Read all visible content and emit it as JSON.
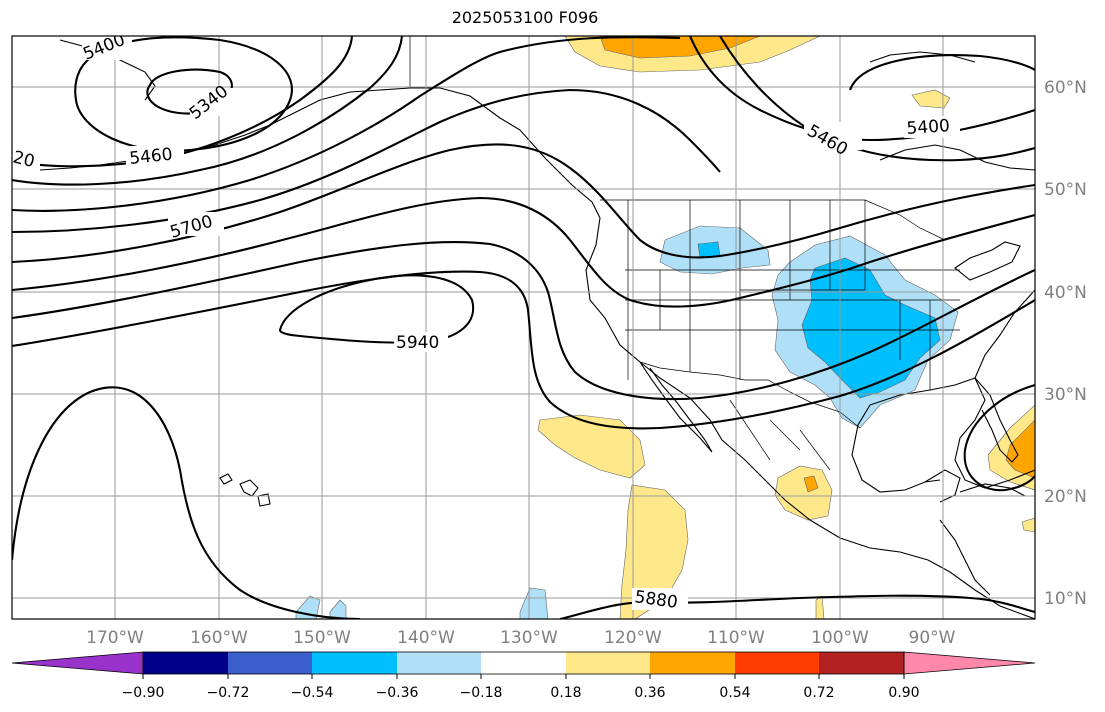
{
  "title": "2025053100 F096",
  "map": {
    "lat_labels": [
      "60°N",
      "50°N",
      "40°N",
      "30°N",
      "20°N",
      "10°N"
    ],
    "lon_labels": [
      "170°W",
      "160°W",
      "150°W",
      "140°W",
      "130°W",
      "120°W",
      "110°W",
      "100°W",
      "90°W"
    ],
    "contour_labels": [
      "5400",
      "5340",
      "5460",
      "20",
      "5700",
      "5940",
      "5460",
      "5400",
      "5880"
    ]
  },
  "colorbar": {
    "tick_labels": [
      "−0.90",
      "−0.72",
      "−0.54",
      "−0.36",
      "−0.18",
      "0.18",
      "0.36",
      "0.54",
      "0.72",
      "0.90"
    ],
    "colors": [
      "#9933cc",
      "#00008b",
      "#3a5fcd",
      "#00bfff",
      "#b0e0f8",
      "#ffffff",
      "#ffe88a",
      "#ffa500",
      "#ff3d00",
      "#b22222",
      "#ff88aa"
    ]
  }
}
